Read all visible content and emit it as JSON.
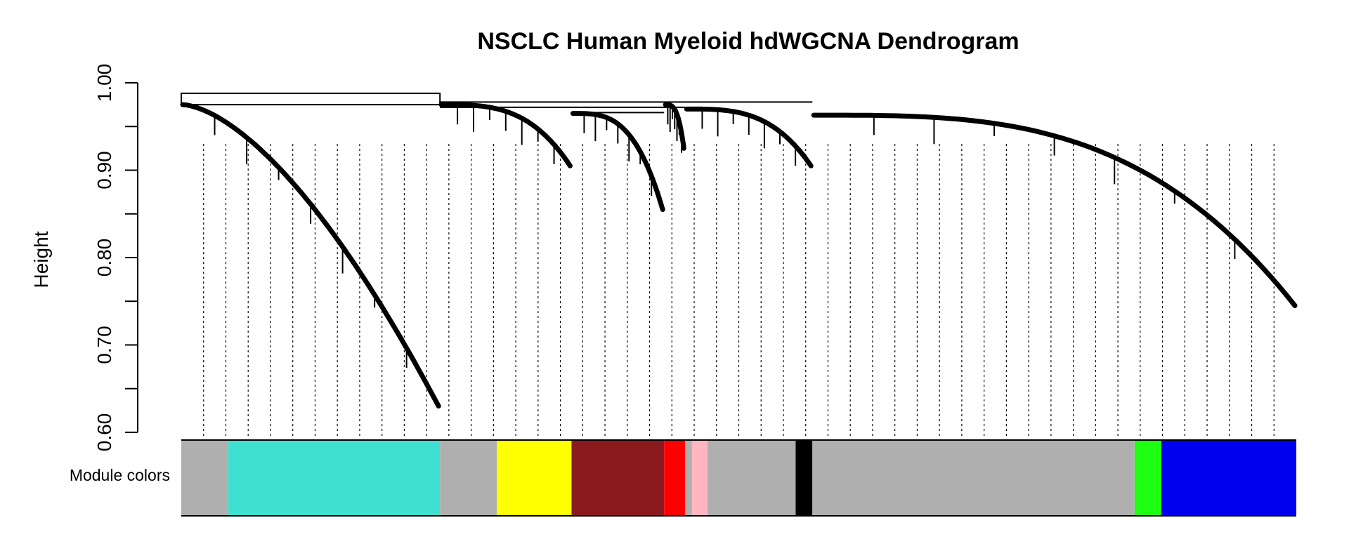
{
  "chart_data": {
    "type": "dendrogram",
    "title": "NSCLC Human Myeloid hdWGCNA Dendrogram",
    "ylabel": "Height",
    "ylim": [
      0.6,
      1.0
    ],
    "y_ticks": [
      {
        "value": 0.6,
        "label": "0.60"
      },
      {
        "value": 0.7,
        "label": "0.70"
      },
      {
        "value": 0.8,
        "label": "0.80"
      },
      {
        "value": 0.9,
        "label": "0.90"
      },
      {
        "value": 1.0,
        "label": "1.00"
      }
    ],
    "y_minor_ticks": [
      0.65,
      0.75,
      0.85,
      0.95
    ],
    "color_bar_label": "Module colors",
    "leaf_fraction_range": [
      0,
      1
    ],
    "branches": [
      {
        "start": 0.0,
        "end": 0.232,
        "h_start": 0.975,
        "h_end": 0.63
      },
      {
        "start": 0.232,
        "end": 0.35,
        "h_start": 0.975,
        "h_end": 0.905
      },
      {
        "start": 0.35,
        "end": 0.433,
        "h_start": 0.965,
        "h_end": 0.855
      },
      {
        "start": 0.433,
        "end": 0.452,
        "h_start": 0.975,
        "h_end": 0.925
      },
      {
        "start": 0.452,
        "end": 0.566,
        "h_start": 0.97,
        "h_end": 0.905
      },
      {
        "start": 0.566,
        "end": 1.0,
        "h_start": 0.963,
        "h_end": 0.745
      }
    ],
    "modules": [
      {
        "color": "grey",
        "hex": "#AFAFAF",
        "start": 0.0,
        "end": 0.042
      },
      {
        "color": "turquoise",
        "hex": "#40E0D0",
        "start": 0.042,
        "end": 0.232
      },
      {
        "color": "grey",
        "hex": "#AFAFAF",
        "start": 0.232,
        "end": 0.283
      },
      {
        "color": "yellow",
        "hex": "#FFFF00",
        "start": 0.283,
        "end": 0.35
      },
      {
        "color": "brown",
        "hex": "#8B1A1F",
        "start": 0.35,
        "end": 0.433
      },
      {
        "color": "red",
        "hex": "#FF0000",
        "start": 0.433,
        "end": 0.452
      },
      {
        "color": "grey",
        "hex": "#AFAFAF",
        "start": 0.452,
        "end": 0.458
      },
      {
        "color": "pink",
        "hex": "#FFB6C1",
        "start": 0.458,
        "end": 0.472
      },
      {
        "color": "grey",
        "hex": "#AFAFAF",
        "start": 0.472,
        "end": 0.551
      },
      {
        "color": "black",
        "hex": "#000000",
        "start": 0.551,
        "end": 0.566
      },
      {
        "color": "grey",
        "hex": "#AFAFAF",
        "start": 0.566,
        "end": 0.855
      },
      {
        "color": "green",
        "hex": "#1FFF11",
        "start": 0.855,
        "end": 0.879
      },
      {
        "color": "blue",
        "hex": "#0000EE",
        "start": 0.879,
        "end": 1.0
      }
    ]
  }
}
